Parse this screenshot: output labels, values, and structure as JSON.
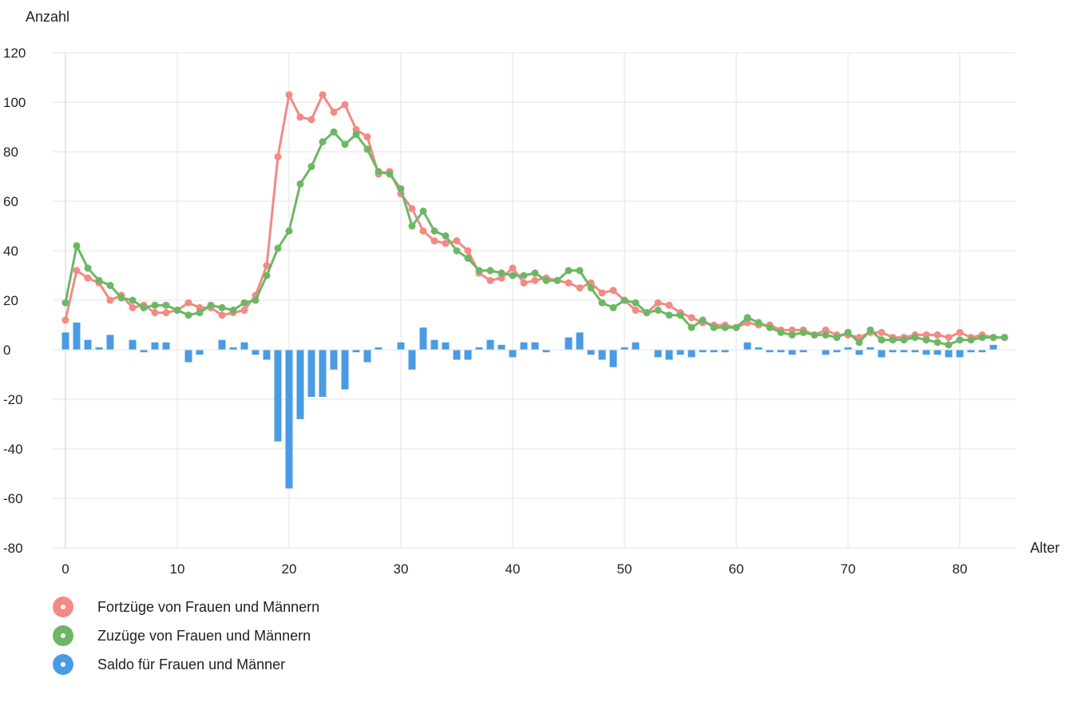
{
  "chart_data": {
    "type": "bar",
    "title": "",
    "xlabel": "Alter",
    "ylabel": "Anzahl",
    "xlim": [
      0,
      85
    ],
    "ylim": [
      -80,
      120
    ],
    "x_ticks": [
      "0",
      "10",
      "20",
      "30",
      "40",
      "50",
      "60",
      "70",
      "80"
    ],
    "y_ticks": [
      "120",
      "100",
      "80",
      "60",
      "40",
      "20",
      "0",
      "-20",
      "-40",
      "-60",
      "-80"
    ],
    "grid": true,
    "legend_position": "bottom-left",
    "x": [
      0,
      1,
      2,
      3,
      4,
      5,
      6,
      7,
      8,
      9,
      10,
      11,
      12,
      13,
      14,
      15,
      16,
      17,
      18,
      19,
      20,
      21,
      22,
      23,
      24,
      25,
      26,
      27,
      28,
      29,
      30,
      31,
      32,
      33,
      34,
      35,
      36,
      37,
      38,
      39,
      40,
      41,
      42,
      43,
      44,
      45,
      46,
      47,
      48,
      49,
      50,
      51,
      52,
      53,
      54,
      55,
      56,
      57,
      58,
      59,
      60,
      61,
      62,
      63,
      64,
      65,
      66,
      67,
      68,
      69,
      70,
      71,
      72,
      73,
      74,
      75,
      76,
      77,
      78,
      79,
      80,
      81,
      82,
      83,
      84
    ],
    "series": [
      {
        "name": "Fortzüge von Frauen und Männern",
        "type": "line",
        "color": "#f28a86",
        "values": [
          12,
          32,
          29,
          27,
          20,
          22,
          17,
          18,
          15,
          15,
          16,
          19,
          17,
          17,
          14,
          15,
          16,
          22,
          34,
          78,
          103,
          94,
          93,
          103,
          96,
          99,
          89,
          86,
          71,
          72,
          63,
          57,
          48,
          44,
          43,
          44,
          40,
          31,
          28,
          29,
          33,
          27,
          28,
          29,
          28,
          27,
          25,
          27,
          23,
          24,
          20,
          16,
          15,
          19,
          18,
          15,
          13,
          11,
          10,
          10,
          9,
          11,
          10,
          10,
          8,
          8,
          8,
          6,
          8,
          6,
          6,
          5,
          7,
          7,
          5,
          5,
          6,
          6,
          6,
          5,
          7,
          5,
          6,
          5,
          5
        ]
      },
      {
        "name": "Zuzüge von Frauen und Männern",
        "type": "line",
        "color": "#6db764",
        "values": [
          19,
          42,
          33,
          28,
          26,
          21,
          20,
          17,
          18,
          18,
          16,
          14,
          15,
          18,
          17,
          16,
          19,
          20,
          30,
          41,
          48,
          67,
          74,
          84,
          88,
          83,
          87,
          81,
          72,
          71,
          65,
          50,
          56,
          48,
          46,
          40,
          37,
          32,
          32,
          31,
          30,
          30,
          31,
          28,
          28,
          32,
          32,
          25,
          19,
          17,
          20,
          19,
          15,
          16,
          14,
          14,
          9,
          12,
          9,
          9,
          9,
          13,
          11,
          9,
          7,
          6,
          7,
          6,
          6,
          5,
          7,
          3,
          8,
          4,
          4,
          4,
          5,
          4,
          3,
          2,
          4,
          4,
          5,
          5,
          5
        ]
      },
      {
        "name": "Saldo für Frauen und Männer",
        "type": "bar",
        "color": "#4a9be3",
        "values": [
          7,
          11,
          4,
          1,
          6,
          0,
          4,
          -1,
          3,
          3,
          0,
          -5,
          -2,
          0,
          4,
          1,
          3,
          -2,
          -4,
          -37,
          -56,
          -28,
          -19,
          -19,
          -8,
          -16,
          -1,
          -5,
          1,
          0,
          3,
          -8,
          9,
          4,
          3,
          -4,
          -4,
          1,
          4,
          2,
          -3,
          3,
          3,
          -1,
          0,
          5,
          7,
          -2,
          -4,
          -7,
          1,
          3,
          0,
          -3,
          -4,
          -2,
          -3,
          -1,
          -1,
          -1,
          0,
          3,
          1,
          -1,
          -1,
          -2,
          -1,
          0,
          -2,
          -1,
          1,
          -2,
          1,
          -3,
          -1,
          -1,
          -1,
          -2,
          -2,
          -3,
          -3,
          -1,
          -1,
          2,
          0
        ]
      }
    ]
  }
}
